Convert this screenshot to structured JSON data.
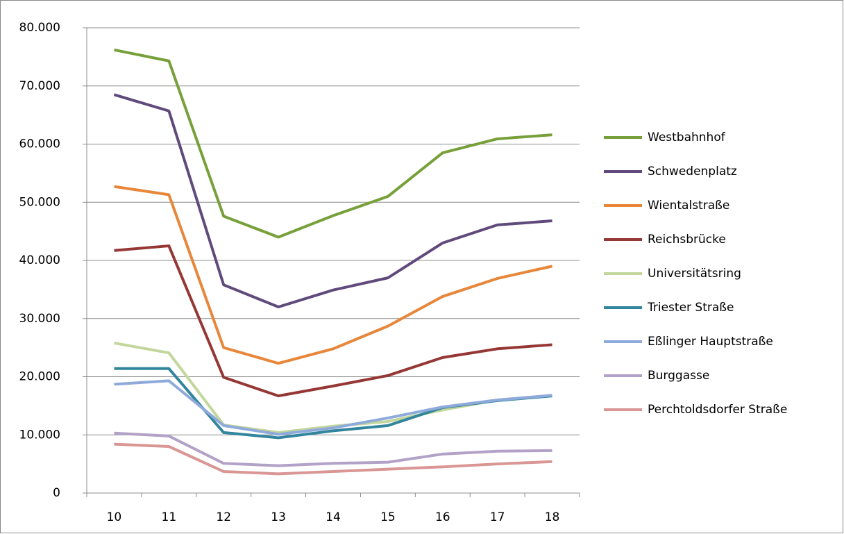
{
  "chart_data": {
    "type": "line",
    "categories": [
      "10",
      "11",
      "12",
      "13",
      "14",
      "15",
      "16",
      "17",
      "18"
    ],
    "ylim": [
      0,
      80000
    ],
    "yticks": [
      {
        "value": 0,
        "label": "0"
      },
      {
        "value": 10000,
        "label": "10.000"
      },
      {
        "value": 20000,
        "label": "20.000"
      },
      {
        "value": 30000,
        "label": "30.000"
      },
      {
        "value": 40000,
        "label": "40.000"
      },
      {
        "value": 50000,
        "label": "50.000"
      },
      {
        "value": 60000,
        "label": "60.000"
      },
      {
        "value": 70000,
        "label": "70.000"
      },
      {
        "value": 80000,
        "label": "80.000"
      }
    ],
    "grid": true,
    "legend": "right",
    "series": [
      {
        "name": "Westbahnhof",
        "color": "#77a03a",
        "values": [
          76200,
          74300,
          47600,
          44000,
          47700,
          51000,
          58500,
          60900,
          61600
        ]
      },
      {
        "name": "Schwedenplatz",
        "color": "#604a7b",
        "values": [
          68500,
          65700,
          35800,
          32000,
          34900,
          37000,
          43000,
          46100,
          46800
        ]
      },
      {
        "name": "Wientalstraße",
        "color": "#e8863a",
        "values": [
          52700,
          51300,
          25000,
          22300,
          24800,
          28700,
          33800,
          36900,
          39000
        ]
      },
      {
        "name": "Reichsbrücke",
        "color": "#953735",
        "values": [
          41700,
          42500,
          19900,
          16700,
          18400,
          20200,
          23300,
          24800,
          25500
        ]
      },
      {
        "name": "Universitätsring",
        "color": "#c3d69b",
        "values": [
          25800,
          24100,
          11700,
          10400,
          11500,
          12300,
          14300,
          16000,
          16700
        ]
      },
      {
        "name": "Triester Straße",
        "color": "#31859c",
        "values": [
          21400,
          21400,
          10400,
          9500,
          10700,
          11600,
          14700,
          15900,
          16700
        ]
      },
      {
        "name": "Eßlinger Hauptstraße",
        "color": "#8eaadb",
        "values": [
          18700,
          19300,
          11600,
          10100,
          11200,
          12900,
          14800,
          16000,
          16800
        ]
      },
      {
        "name": "Burggasse",
        "color": "#b3a2c7",
        "values": [
          10300,
          9800,
          5100,
          4700,
          5100,
          5300,
          6700,
          7200,
          7300
        ]
      },
      {
        "name": "Perchtoldsdorfer Straße",
        "color": "#d99694",
        "values": [
          8400,
          8000,
          3700,
          3300,
          3700,
          4100,
          4500,
          5000,
          5400
        ]
      }
    ]
  }
}
